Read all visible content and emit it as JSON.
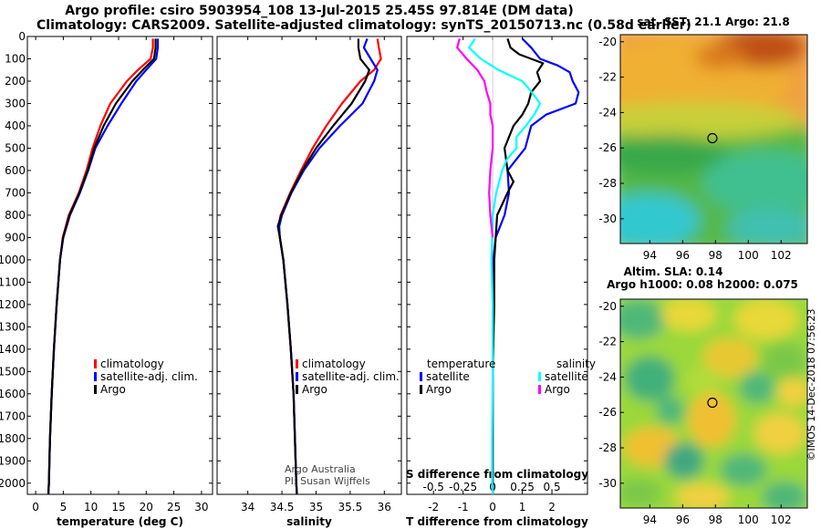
{
  "titles": {
    "line1": "Argo profile: csiro 5903954_108 13-Jul-2015 25.45S 97.814E (DM data)",
    "line2": "Climatology: CARS2009. Satellite-adjusted climatology: synTS_20150713.nc (0.58d earlier)"
  },
  "colors": {
    "climatology": "#ff0000",
    "satellite": "#0000ff",
    "argo": "#000000",
    "satellite_sal_diff": "#00ffff",
    "argo_sal_diff": "#ff00ff"
  },
  "depth_axis": {
    "ticks": [
      0,
      100,
      200,
      300,
      400,
      500,
      600,
      700,
      800,
      900,
      1000,
      1100,
      1200,
      1300,
      1400,
      1500,
      1600,
      1700,
      1800,
      1900,
      2000
    ],
    "range": [
      0,
      2050
    ]
  },
  "chart_data": [
    {
      "type": "line",
      "id": "temperature",
      "xlabel": "temperature (deg C)",
      "xlim": [
        -1.5,
        32
      ],
      "xticks": [
        0,
        5,
        10,
        15,
        20,
        25,
        30
      ],
      "legend": [
        "climatology",
        "satellite-adj. clim.",
        "Argo"
      ],
      "series": [
        {
          "name": "climatology",
          "color_key": "climatology",
          "depth": [
            10,
            50,
            100,
            150,
            200,
            300,
            400,
            500,
            600,
            700,
            800,
            900,
            1000,
            1200,
            1400,
            1600,
            1800,
            2000,
            2050
          ],
          "values": [
            21.2,
            21.2,
            20.8,
            18.5,
            16.5,
            13.5,
            11.7,
            10.3,
            9.2,
            7.8,
            6.0,
            4.9,
            4.4,
            3.8,
            3.3,
            2.9,
            2.6,
            2.4,
            2.3
          ]
        },
        {
          "name": "satellite-adj. clim.",
          "color_key": "satellite",
          "depth": [
            10,
            50,
            100,
            150,
            200,
            300,
            400,
            500,
            600,
            700,
            800,
            900,
            1000,
            1200,
            1400,
            1600,
            1800,
            2000,
            2050
          ],
          "values": [
            22.1,
            22.1,
            21.8,
            20.0,
            18.2,
            15.5,
            13.0,
            10.8,
            9.5,
            8.0,
            6.2,
            5.0,
            4.4,
            3.8,
            3.3,
            2.9,
            2.6,
            2.4,
            2.3
          ]
        },
        {
          "name": "Argo",
          "color_key": "argo",
          "depth": [
            10,
            50,
            100,
            150,
            200,
            300,
            400,
            500,
            600,
            700,
            800,
            900,
            1000,
            1200,
            1400,
            1600,
            1800,
            2000,
            2050
          ],
          "values": [
            21.7,
            21.7,
            21.4,
            19.4,
            17.5,
            14.5,
            12.3,
            10.6,
            9.4,
            7.9,
            6.1,
            4.95,
            4.4,
            3.8,
            3.3,
            2.9,
            2.6,
            2.4,
            2.3
          ]
        }
      ]
    },
    {
      "type": "line",
      "id": "salinity",
      "xlabel": "salinity",
      "xlim": [
        33.55,
        36.25
      ],
      "xticks": [
        34,
        34.5,
        35,
        35.5,
        36
      ],
      "credit": [
        "Argo Australia",
        "PI: Susan Wijffels"
      ],
      "legend": [
        "climatology",
        "satellite-adj. clim.",
        "Argo"
      ],
      "series": [
        {
          "name": "climatology",
          "color_key": "climatology",
          "depth": [
            10,
            50,
            100,
            150,
            200,
            300,
            400,
            500,
            600,
            700,
            800,
            850,
            900,
            1000,
            1200,
            1400,
            1600,
            1800,
            2000,
            2050
          ],
          "values": [
            35.9,
            35.92,
            35.95,
            35.85,
            35.65,
            35.38,
            35.15,
            34.95,
            34.78,
            34.62,
            34.48,
            34.45,
            34.47,
            34.52,
            34.58,
            34.63,
            34.67,
            34.69,
            34.71,
            34.72
          ]
        },
        {
          "name": "satellite-adj. clim.",
          "color_key": "satellite",
          "depth": [
            10,
            50,
            100,
            150,
            200,
            300,
            400,
            500,
            600,
            700,
            800,
            850,
            900,
            1000,
            1200,
            1400,
            1600,
            1800,
            2000,
            2050
          ],
          "values": [
            35.75,
            35.7,
            35.8,
            35.9,
            35.85,
            35.68,
            35.35,
            35.05,
            34.82,
            34.64,
            34.5,
            34.46,
            34.47,
            34.52,
            34.58,
            34.63,
            34.67,
            34.69,
            34.71,
            34.72
          ]
        },
        {
          "name": "Argo",
          "color_key": "argo",
          "depth": [
            10,
            50,
            100,
            150,
            200,
            300,
            400,
            500,
            600,
            700,
            800,
            850,
            900,
            1000,
            1200,
            1400,
            1600,
            1800,
            2000,
            2050
          ],
          "values": [
            35.62,
            35.62,
            35.65,
            35.78,
            35.72,
            35.52,
            35.25,
            35.0,
            34.8,
            34.63,
            34.49,
            34.44,
            34.47,
            34.52,
            34.58,
            34.63,
            34.67,
            34.69,
            34.71,
            34.72
          ]
        }
      ]
    },
    {
      "type": "line",
      "id": "differences",
      "xlabel": "T difference from climatology",
      "xlabel_top": "S difference from climatology",
      "xlim": [
        -2.9,
        3.2
      ],
      "xticks": [
        -2,
        -1,
        0,
        1,
        2
      ],
      "xticks_top": [
        -0.5,
        -0.25,
        0,
        0.25,
        0.5
      ],
      "xticks_top_labels": [
        "-0.5",
        "-0.25",
        "0",
        "0.25",
        "0.5"
      ],
      "legend_temperature_title": "temperature",
      "legend_salinity_title": "salinity",
      "legend_temperature": [
        "satellite",
        "Argo"
      ],
      "legend_salinity": [
        "satellite",
        "Argo"
      ],
      "series": [
        {
          "name": "T satellite",
          "color_key": "satellite",
          "depth": [
            10,
            50,
            100,
            130,
            160,
            200,
            250,
            300,
            350,
            400,
            500,
            600,
            700,
            800,
            900,
            1000,
            1200,
            1500,
            1800,
            2000,
            2050
          ],
          "values": [
            1.0,
            1.3,
            1.6,
            2.2,
            2.6,
            2.7,
            2.9,
            2.8,
            1.8,
            1.3,
            1.1,
            0.5,
            0.55,
            0.4,
            0.1,
            0.02,
            0.0,
            0.0,
            0.0,
            0.0,
            0.0
          ]
        },
        {
          "name": "T Argo",
          "color_key": "argo",
          "depth": [
            10,
            50,
            80,
            120,
            160,
            200,
            250,
            300,
            350,
            400,
            500,
            600,
            650,
            700,
            800,
            900,
            1000,
            1200,
            1500,
            1800,
            2000,
            2050
          ],
          "values": [
            0.5,
            0.6,
            0.9,
            1.7,
            1.5,
            1.6,
            1.3,
            1.2,
            1.0,
            0.7,
            0.4,
            0.5,
            0.7,
            0.5,
            0.15,
            0.1,
            0.05,
            0.05,
            0.0,
            0.0,
            0.0,
            0.0
          ]
        },
        {
          "name": "S satellite",
          "color_key": "satellite_sal_diff",
          "depth": [
            10,
            50,
            100,
            150,
            200,
            250,
            300,
            350,
            400,
            450,
            500,
            550,
            600,
            700,
            800,
            900,
            1000,
            1200,
            1500,
            1800,
            2000,
            2050
          ],
          "values": [
            -0.15,
            -0.2,
            -0.1,
            0.05,
            0.25,
            0.33,
            0.4,
            0.35,
            0.28,
            0.2,
            0.2,
            0.12,
            0.08,
            0.03,
            0.0,
            -0.005,
            -0.01,
            0.0,
            0.0,
            -0.005,
            -0.005,
            0.0
          ]
        },
        {
          "name": "S Argo",
          "color_key": "argo_sal_diff",
          "depth": [
            10,
            50,
            100,
            150,
            200,
            250,
            300,
            350,
            400,
            500,
            600,
            700,
            800,
            900
          ],
          "values": [
            -0.28,
            -0.3,
            -0.22,
            -0.13,
            -0.07,
            -0.05,
            -0.02,
            -0.02,
            0.0,
            0.0,
            -0.02,
            -0.03,
            -0.02,
            0.0
          ]
        }
      ]
    },
    {
      "type": "heatmap",
      "id": "sst_map",
      "title": "sat. SST: 21.1 Argo: 21.8",
      "xticks": [
        94,
        96,
        98,
        100,
        102
      ],
      "yticks": [
        -20,
        -22,
        -24,
        -26,
        -28,
        -30
      ],
      "xlim": [
        92.2,
        103.6
      ],
      "ylim": [
        -31.4,
        -19.6
      ],
      "marker": {
        "lon": 97.814,
        "lat": -25.45
      }
    },
    {
      "type": "heatmap",
      "id": "sla_map",
      "title": "Altim. SLA: 0.14",
      "subtitle": "Argo h1000: 0.08 h2000: 0.075",
      "xticks": [
        94,
        96,
        98,
        100,
        102
      ],
      "yticks": [
        -20,
        -22,
        -24,
        -26,
        -28,
        -30
      ],
      "xlim": [
        92.2,
        103.6
      ],
      "ylim": [
        -31.4,
        -19.6
      ],
      "marker": {
        "lon": 97.814,
        "lat": -25.45
      }
    }
  ],
  "watermark": "©IMOS 14-Dec-2018 07:56:23"
}
